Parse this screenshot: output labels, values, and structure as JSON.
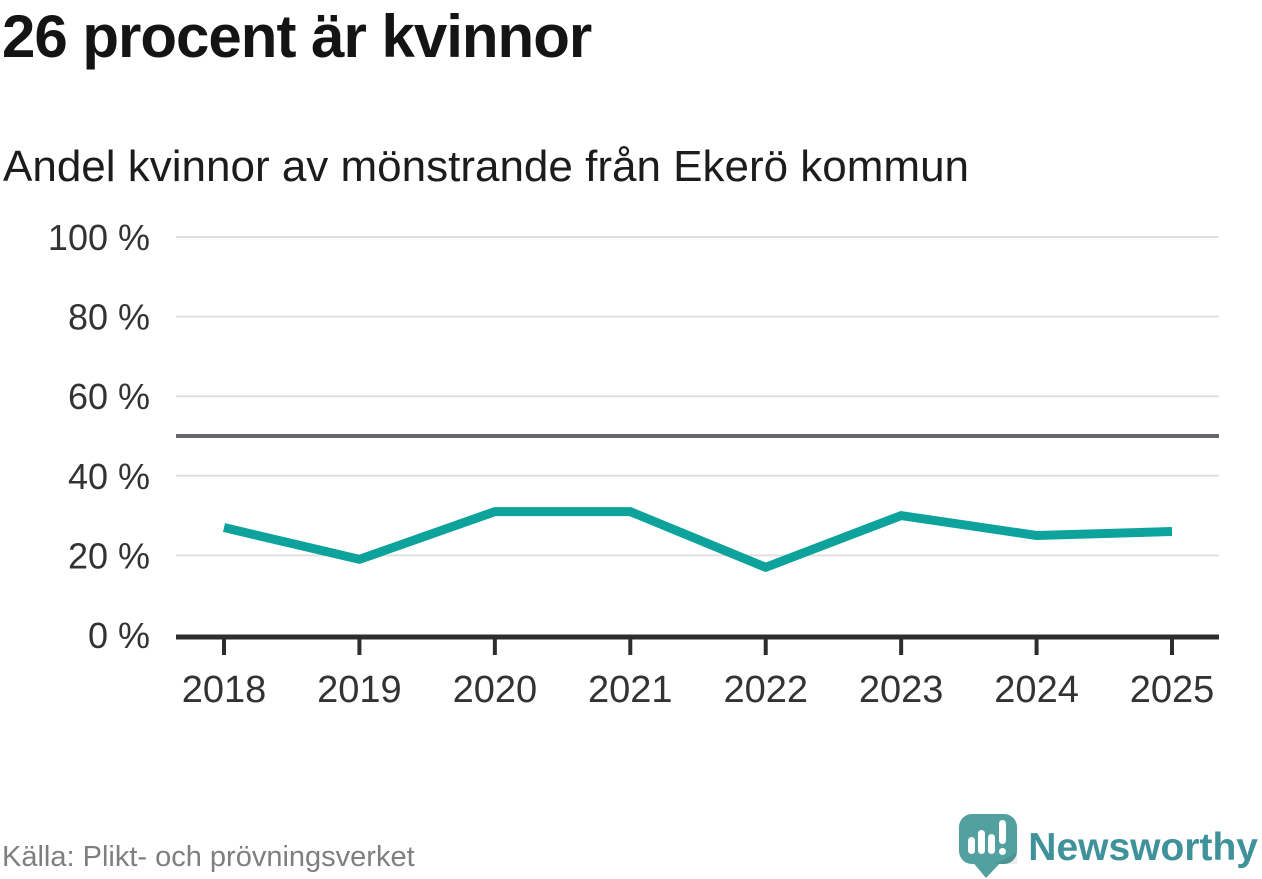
{
  "header": {
    "title": "26 procent är kvinnor",
    "subtitle": "Andel kvinnor av mönstrande från Ekerö kommun"
  },
  "footer": {
    "source": "Källa: Plikt- och prövningsverket",
    "brand_name": "Newsworthy",
    "brand_icon": "bar-chart-speech-bubble-icon"
  },
  "colors": {
    "line": "#0da39c",
    "grid": "#e0e0e0",
    "reference_line": "#66666e",
    "axis": "#2d2d2d",
    "tick_label": "#333333",
    "title_text": "#141414",
    "source_text": "#7f7f7f",
    "brand_teal": "#40929a",
    "logo_bubble": "#52a09f"
  },
  "chart_data": {
    "type": "line",
    "title": "26 procent är kvinnor",
    "subtitle": "Andel kvinnor av mönstrande från Ekerö kommun",
    "x": [
      "2018",
      "2019",
      "2020",
      "2021",
      "2022",
      "2023",
      "2024",
      "2025"
    ],
    "series": [
      {
        "name": "Andel kvinnor av mönstrande",
        "values": [
          27,
          19,
          31,
          31,
          17,
          30,
          25,
          26
        ],
        "color": "#0da39c"
      }
    ],
    "ylim": [
      0,
      100
    ],
    "yticks": [
      0,
      20,
      40,
      60,
      80,
      100
    ],
    "ytick_labels": [
      "0 %",
      "20 %",
      "40 %",
      "60 %",
      "80 %",
      "100 %"
    ],
    "ytick_suffix": " %",
    "reference_line": 50,
    "grid": true,
    "legend": "none",
    "xlabel": "",
    "ylabel": ""
  }
}
